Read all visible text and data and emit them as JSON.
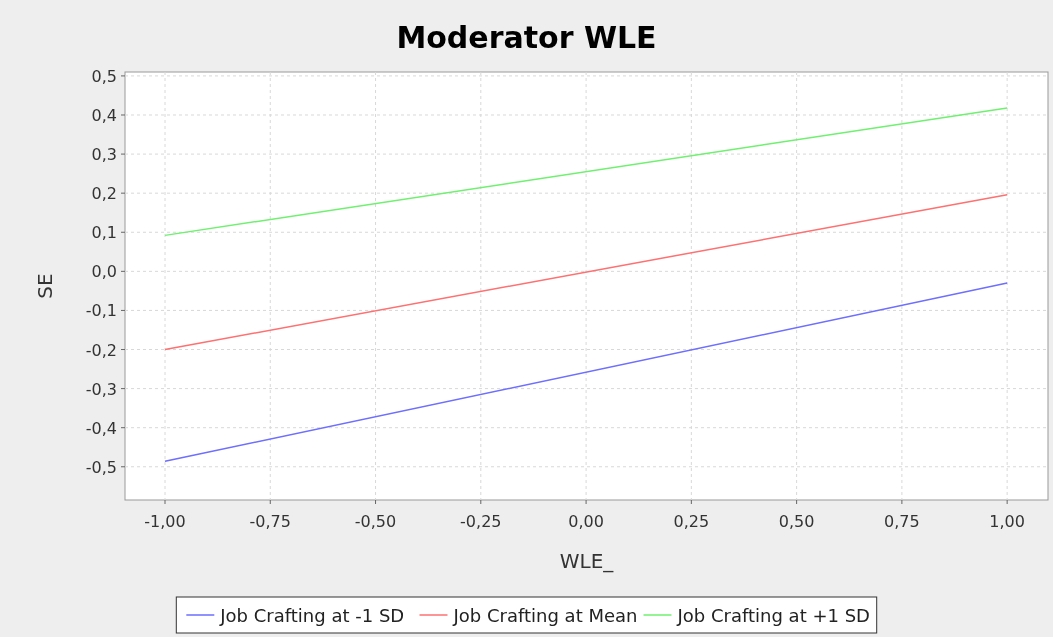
{
  "chart_data": {
    "type": "line",
    "title": "Moderator WLE",
    "xlabel": "WLE_",
    "ylabel": "SE",
    "x": [
      -1,
      1
    ],
    "series": [
      {
        "name": "Job Crafting at -1 SD",
        "color": "#6e6eff",
        "values": [
          -0.486,
          -0.03
        ]
      },
      {
        "name": "Job Crafting at Mean",
        "color": "#ff7070",
        "values": [
          -0.2,
          0.196
        ]
      },
      {
        "name": "Job Crafting at +1 SD",
        "color": "#70f070",
        "values": [
          0.092,
          0.418
        ]
      }
    ],
    "xlim": [
      -1.095,
      1.097
    ],
    "ylim": [
      -0.585,
      0.51
    ],
    "xticks": [
      {
        "value": -1,
        "label": "-1,00"
      },
      {
        "value": -0.75,
        "label": "-0,75"
      },
      {
        "value": -0.5,
        "label": "-0,50"
      },
      {
        "value": -0.25,
        "label": "-0,25"
      },
      {
        "value": 0,
        "label": "0,00"
      },
      {
        "value": 0.25,
        "label": "0,25"
      },
      {
        "value": 0.5,
        "label": "0,50"
      },
      {
        "value": 0.75,
        "label": "0,75"
      },
      {
        "value": 1,
        "label": "1,00"
      }
    ],
    "yticks": [
      {
        "value": -0.5,
        "label": "-0,5"
      },
      {
        "value": -0.4,
        "label": "-0,4"
      },
      {
        "value": -0.3,
        "label": "-0,3"
      },
      {
        "value": -0.2,
        "label": "-0,2"
      },
      {
        "value": -0.1,
        "label": "-0,1"
      },
      {
        "value": 0,
        "label": "0,0"
      },
      {
        "value": 0.1,
        "label": "0,1"
      },
      {
        "value": 0.2,
        "label": "0,2"
      },
      {
        "value": 0.3,
        "label": "0,3"
      },
      {
        "value": 0.4,
        "label": "0,4"
      },
      {
        "value": 0.5,
        "label": "0,5"
      }
    ],
    "grid": true,
    "legend": "bottom",
    "marker": "none",
    "line_style": "solid"
  }
}
